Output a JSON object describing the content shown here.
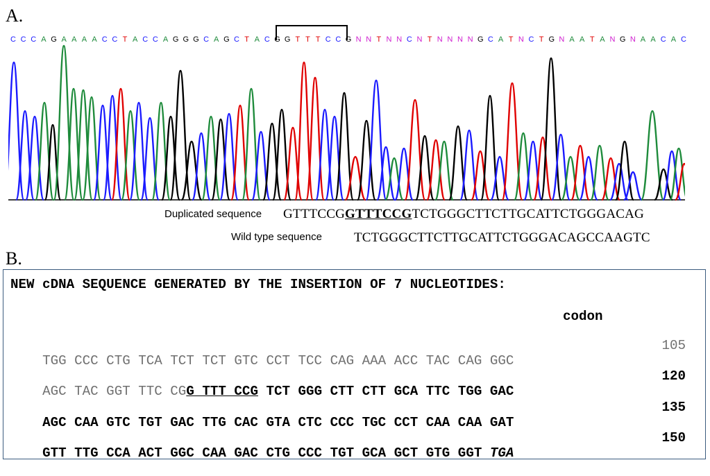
{
  "panel_a_label": "A.",
  "panel_b_label": "B.",
  "base_calls": [
    {
      "b": "C",
      "c": "#1a1aff"
    },
    {
      "b": "C",
      "c": "#1a1aff"
    },
    {
      "b": "C",
      "c": "#1a1aff"
    },
    {
      "b": "A",
      "c": "#1e8b3b"
    },
    {
      "b": "G",
      "c": "#000000"
    },
    {
      "b": "A",
      "c": "#1e8b3b"
    },
    {
      "b": "A",
      "c": "#1e8b3b"
    },
    {
      "b": "A",
      "c": "#1e8b3b"
    },
    {
      "b": "A",
      "c": "#1e8b3b"
    },
    {
      "b": "C",
      "c": "#1a1aff"
    },
    {
      "b": "C",
      "c": "#1a1aff"
    },
    {
      "b": "T",
      "c": "#e00000"
    },
    {
      "b": "A",
      "c": "#1e8b3b"
    },
    {
      "b": "C",
      "c": "#1a1aff"
    },
    {
      "b": "C",
      "c": "#1a1aff"
    },
    {
      "b": "A",
      "c": "#1e8b3b"
    },
    {
      "b": "G",
      "c": "#000000"
    },
    {
      "b": "G",
      "c": "#000000"
    },
    {
      "b": "G",
      "c": "#000000"
    },
    {
      "b": "C",
      "c": "#1a1aff"
    },
    {
      "b": "A",
      "c": "#1e8b3b"
    },
    {
      "b": "G",
      "c": "#000000"
    },
    {
      "b": "C",
      "c": "#1a1aff"
    },
    {
      "b": "T",
      "c": "#e00000"
    },
    {
      "b": "A",
      "c": "#1e8b3b"
    },
    {
      "b": "C",
      "c": "#1a1aff"
    },
    {
      "b": "G",
      "c": "#000000"
    },
    {
      "b": "G",
      "c": "#000000"
    },
    {
      "b": "T",
      "c": "#e00000"
    },
    {
      "b": "T",
      "c": "#e00000"
    },
    {
      "b": "T",
      "c": "#e00000"
    },
    {
      "b": "C",
      "c": "#1a1aff"
    },
    {
      "b": "C",
      "c": "#1a1aff"
    },
    {
      "b": "G",
      "c": "#000000"
    },
    {
      "b": "N",
      "c": "#d020d0"
    },
    {
      "b": "N",
      "c": "#d020d0"
    },
    {
      "b": "T",
      "c": "#e00000"
    },
    {
      "b": "N",
      "c": "#d020d0"
    },
    {
      "b": "N",
      "c": "#d020d0"
    },
    {
      "b": "C",
      "c": "#1a1aff"
    },
    {
      "b": "N",
      "c": "#d020d0"
    },
    {
      "b": "T",
      "c": "#e00000"
    },
    {
      "b": "N",
      "c": "#d020d0"
    },
    {
      "b": "N",
      "c": "#d020d0"
    },
    {
      "b": "N",
      "c": "#d020d0"
    },
    {
      "b": "N",
      "c": "#d020d0"
    },
    {
      "b": "G",
      "c": "#000000"
    },
    {
      "b": "C",
      "c": "#1a1aff"
    },
    {
      "b": "A",
      "c": "#1e8b3b"
    },
    {
      "b": "T",
      "c": "#e00000"
    },
    {
      "b": "N",
      "c": "#d020d0"
    },
    {
      "b": "C",
      "c": "#1a1aff"
    },
    {
      "b": "T",
      "c": "#e00000"
    },
    {
      "b": "G",
      "c": "#000000"
    },
    {
      "b": "N",
      "c": "#d020d0"
    },
    {
      "b": "A",
      "c": "#1e8b3b"
    },
    {
      "b": "A",
      "c": "#1e8b3b"
    },
    {
      "b": "T",
      "c": "#e00000"
    },
    {
      "b": "A",
      "c": "#1e8b3b"
    },
    {
      "b": "N",
      "c": "#d020d0"
    },
    {
      "b": "G",
      "c": "#000000"
    },
    {
      "b": "N",
      "c": "#d020d0"
    },
    {
      "b": "A",
      "c": "#1e8b3b"
    },
    {
      "b": "A",
      "c": "#1e8b3b"
    },
    {
      "b": "C",
      "c": "#1a1aff"
    },
    {
      "b": "A",
      "c": "#1e8b3b"
    },
    {
      "b": "C",
      "c": "#1a1aff"
    }
  ],
  "trace_colors": {
    "A": "#1e8b3b",
    "C": "#1a1aff",
    "G": "#000000",
    "T": "#e00000"
  },
  "duplicated_label": "Duplicated sequence",
  "duplicated_prefix": "GTTTCCG",
  "duplicated_bold": "GTTTCCG",
  "duplicated_suffix": "TCTGGGCTTCTTGCATTCTGGGACAG",
  "wildtype_label": "Wild type sequence",
  "wildtype_seq": "TCTGGGCTTCTTGCATTCTGGGACAGCCAAGTC",
  "box": {
    "heading": "NEW cDNA SEQUENCE GENERATED BY THE INSERTION OF 7 NUCLEOTIDES:",
    "codon_label": "codon",
    "row1_grey": "TGG CCC CTG TCA TCT TCT GTC CCT TCC CAG AAA ACC TAC CAG GGC",
    "row1_num": "105",
    "row2_grey": "AGC TAC GGT TTC CG",
    "row2_ins": "G TTT CCG",
    "row2_bold": " TCT GGG CTT CTT GCA TTC TGG GAC",
    "row2_num": "120",
    "row3_bold": "AGC CAA GTC TGT GAC TTG CAC GTA CTC CCC TGC CCT CAA CAA GAT",
    "row3_num": "135",
    "row4_bold": "GTT TTG CCA ACT GGC CAA GAC CTG CCC TGT GCA GCT GTG GGT ",
    "row4_stop": "TGA",
    "row4_num": "150"
  }
}
